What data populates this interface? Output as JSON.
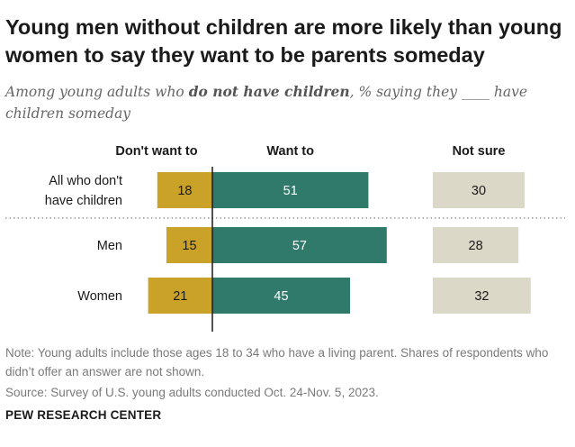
{
  "title": "Young men without children are more likely than young women to say they want to be parents someday",
  "subtitle": {
    "before": "Among young adults who ",
    "bold": "do not have children",
    "after": ", % saying they ____ have children someday"
  },
  "chart_data": {
    "type": "bar",
    "orientation": "horizontal",
    "layout": "diverging",
    "categories": [
      "All who don't have children",
      "Men",
      "Women"
    ],
    "category_lines": [
      [
        "All who don't",
        "have children"
      ],
      [
        "Men"
      ],
      [
        "Women"
      ]
    ],
    "series": [
      {
        "name": "Don't want to",
        "values": [
          18,
          15,
          21
        ],
        "color": "#c9a227"
      },
      {
        "name": "Want to",
        "values": [
          51,
          57,
          45
        ],
        "color": "#2f7a6a"
      },
      {
        "name": "Not sure",
        "values": [
          30,
          28,
          32
        ],
        "color": "#dcd8c8"
      }
    ],
    "label_colors": [
      "#1a1a1a",
      "#ffffff",
      "#1a1a1a"
    ],
    "grid": false
  },
  "note": "Note: Young adults include those ages 18 to 34 who have a living parent. Shares of respondents who didn’t offer an answer are not shown.",
  "source": "Source: Survey of U.S. young adults conducted Oct. 24-Nov. 5, 2023.",
  "brand": "PEW RESEARCH CENTER"
}
